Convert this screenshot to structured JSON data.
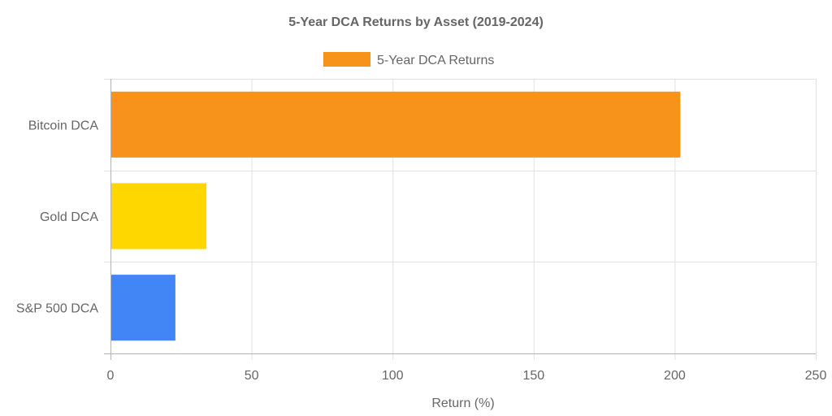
{
  "chart_data": {
    "type": "bar",
    "orientation": "horizontal",
    "title": "5-Year DCA Returns by Asset (2019-2024)",
    "categories": [
      "Bitcoin DCA",
      "Gold DCA",
      "S&P 500 DCA"
    ],
    "series": [
      {
        "name": "5-Year DCA Returns",
        "values": [
          202,
          34,
          23
        ],
        "colors": [
          "#F7931A",
          "#FFD700",
          "#4285F4"
        ]
      }
    ],
    "xlabel": "Return (%)",
    "ylabel": "",
    "xlim": [
      0,
      250
    ],
    "xticks": [
      "0",
      "50",
      "100",
      "150",
      "200",
      "250"
    ],
    "grid": true,
    "legend_position": "top"
  }
}
